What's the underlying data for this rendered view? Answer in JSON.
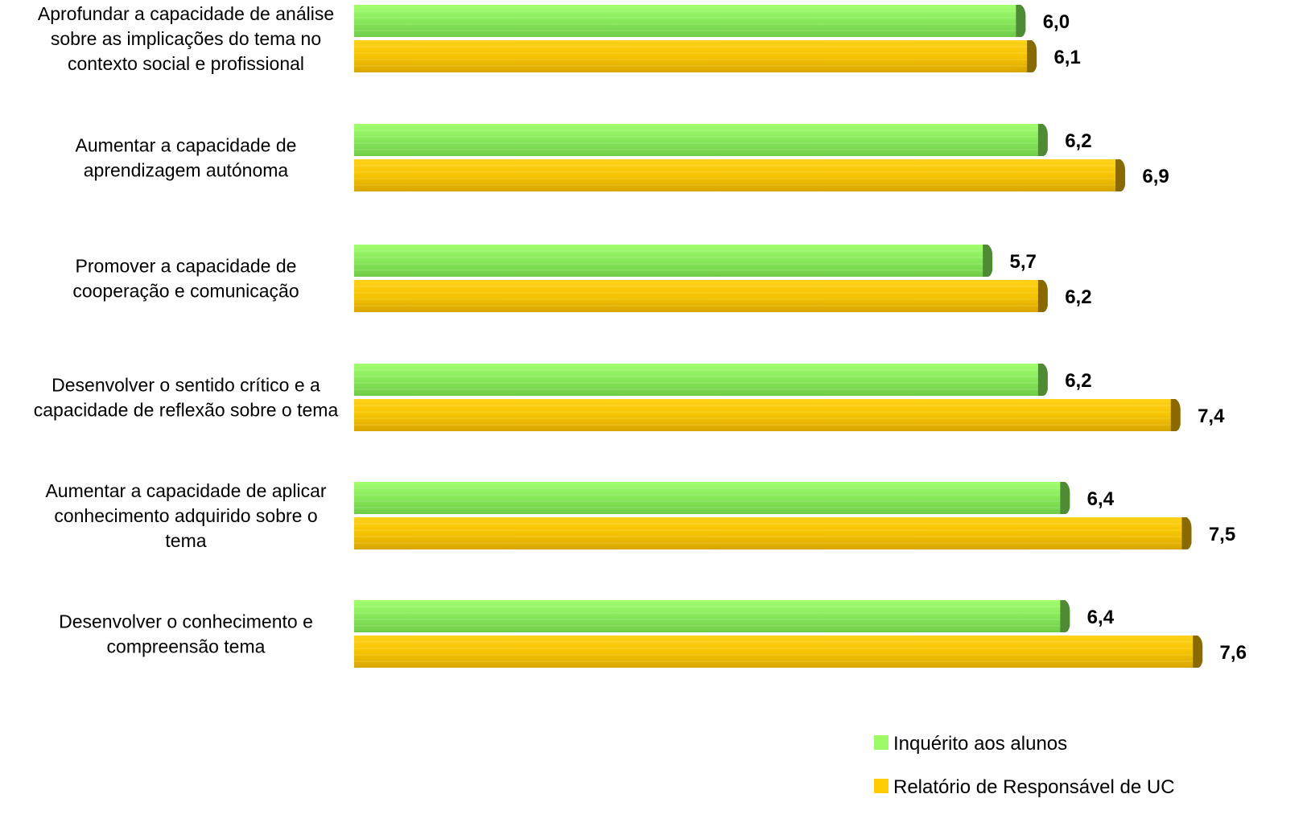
{
  "chart_data": {
    "type": "bar",
    "orientation": "horizontal",
    "categories": [
      [
        "Aprofundar a capacidade de análise",
        "sobre as implicações do tema no",
        "contexto social e profissional"
      ],
      [
        "Aumentar a capacidade de",
        "aprendizagem autónoma"
      ],
      [
        "Promover a capacidade de",
        "cooperação e comunicação"
      ],
      [
        "Desenvolver o sentido crítico e a",
        "capacidade de reflexão sobre o tema"
      ],
      [
        "Aumentar a capacidade de aplicar",
        "conhecimento adquirido sobre o",
        "tema"
      ],
      [
        "Desenvolver o conhecimento e",
        "compreensão tema"
      ]
    ],
    "series": [
      {
        "name": "Inquérito aos alunos",
        "values": [
          6.0,
          6.2,
          5.7,
          6.2,
          6.4,
          6.4
        ],
        "labels": [
          "6,0",
          "6,2",
          "5,7",
          "6,2",
          "6,4",
          "6,4"
        ]
      },
      {
        "name": "Relatório de Responsável de UC",
        "values": [
          6.1,
          6.9,
          6.2,
          7.4,
          7.5,
          7.6
        ],
        "labels": [
          "6,1",
          "6,9",
          "6,2",
          "7,4",
          "7,5",
          "7,6"
        ]
      }
    ],
    "xlim": [
      0,
      8
    ],
    "grid": false,
    "legend_position": "bottom-right"
  },
  "colors": {
    "series_fill": [
      "#86e85a",
      "#f5c400"
    ],
    "series_top": [
      "#a2ff70",
      "#ffd21a"
    ],
    "series_bottom": [
      "#70cc48",
      "#d8a600"
    ],
    "series_cap": [
      "#4f8a34",
      "#8a6a00"
    ],
    "legend": [
      "#9cfa66",
      "#ffcc00"
    ]
  }
}
